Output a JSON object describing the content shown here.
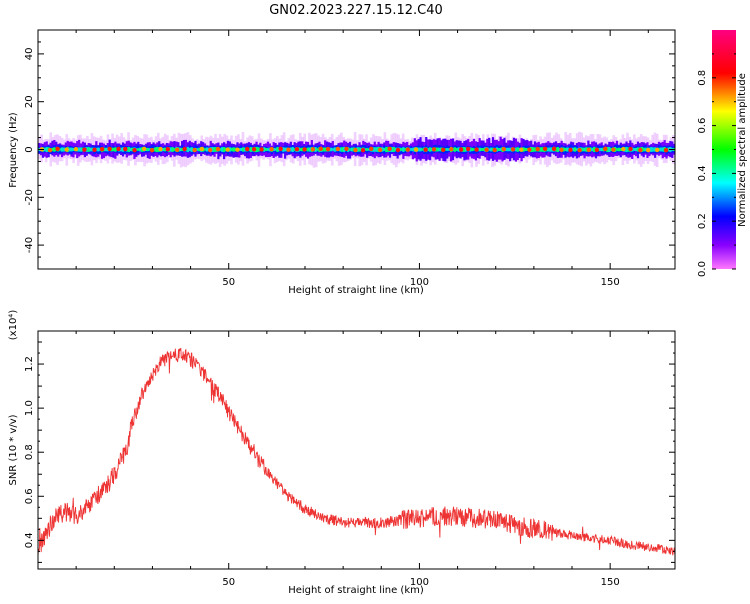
{
  "title": "GN02.2023.227.15.12.C40",
  "chart_data": [
    {
      "type": "heatmap",
      "xlabel": "Height of straight line (km)",
      "ylabel": "Frequency (Hz)",
      "xlim": [
        0,
        167
      ],
      "ylim": [
        -50,
        50
      ],
      "x_ticks": [
        50,
        100,
        150
      ],
      "y_ticks": [
        40,
        20,
        0,
        -20,
        -40
      ],
      "colorbar": {
        "label": "Normalized spectral amplitude",
        "range": [
          0,
          1
        ],
        "ticks": [
          0.0,
          0.2,
          0.4,
          0.6,
          0.8
        ],
        "colors": [
          "#ff77ff",
          "#8800ff",
          "#0000ff",
          "#00ffff",
          "#00ff00",
          "#ffff00",
          "#ff0000",
          "#ff0080"
        ]
      },
      "signal": {
        "center_frequency": 0,
        "band_halfwidth": 3,
        "halo_halfwidth": 6,
        "peak_amplitude": 0.9,
        "peak_dot_spacing": 2.2
      }
    },
    {
      "type": "line",
      "xlabel": "Height of straight line (km)",
      "ylabel": "SNR (10 * v/v)",
      "y_multiplier": "(x10⁴)",
      "xlim": [
        0,
        167
      ],
      "ylim": [
        0.27,
        1.35
      ],
      "x_ticks": [
        50,
        100,
        150
      ],
      "y_ticks": [
        0.4,
        0.6,
        0.8,
        1.0,
        1.2
      ],
      "color": "#ee3333",
      "series": [
        {
          "x": [
            0,
            2,
            5,
            8,
            10,
            13,
            15,
            18,
            20,
            23,
            25,
            27,
            30,
            32,
            34,
            36,
            38,
            40,
            42,
            45,
            48,
            50,
            53,
            55,
            58,
            60,
            63,
            65,
            68,
            70,
            73,
            75,
            78,
            80,
            85,
            90,
            95,
            100,
            105,
            110,
            115,
            120,
            125,
            130,
            135,
            140,
            145,
            150,
            155,
            160,
            167
          ],
          "y": [
            0.35,
            0.43,
            0.52,
            0.53,
            0.51,
            0.55,
            0.59,
            0.64,
            0.7,
            0.8,
            0.95,
            1.05,
            1.14,
            1.2,
            1.23,
            1.24,
            1.24,
            1.22,
            1.19,
            1.11,
            1.05,
            0.98,
            0.9,
            0.84,
            0.77,
            0.71,
            0.65,
            0.61,
            0.57,
            0.54,
            0.52,
            0.5,
            0.49,
            0.48,
            0.48,
            0.48,
            0.49,
            0.5,
            0.51,
            0.51,
            0.5,
            0.49,
            0.47,
            0.45,
            0.44,
            0.42,
            0.41,
            0.4,
            0.38,
            0.37,
            0.35
          ]
        }
      ]
    }
  ]
}
